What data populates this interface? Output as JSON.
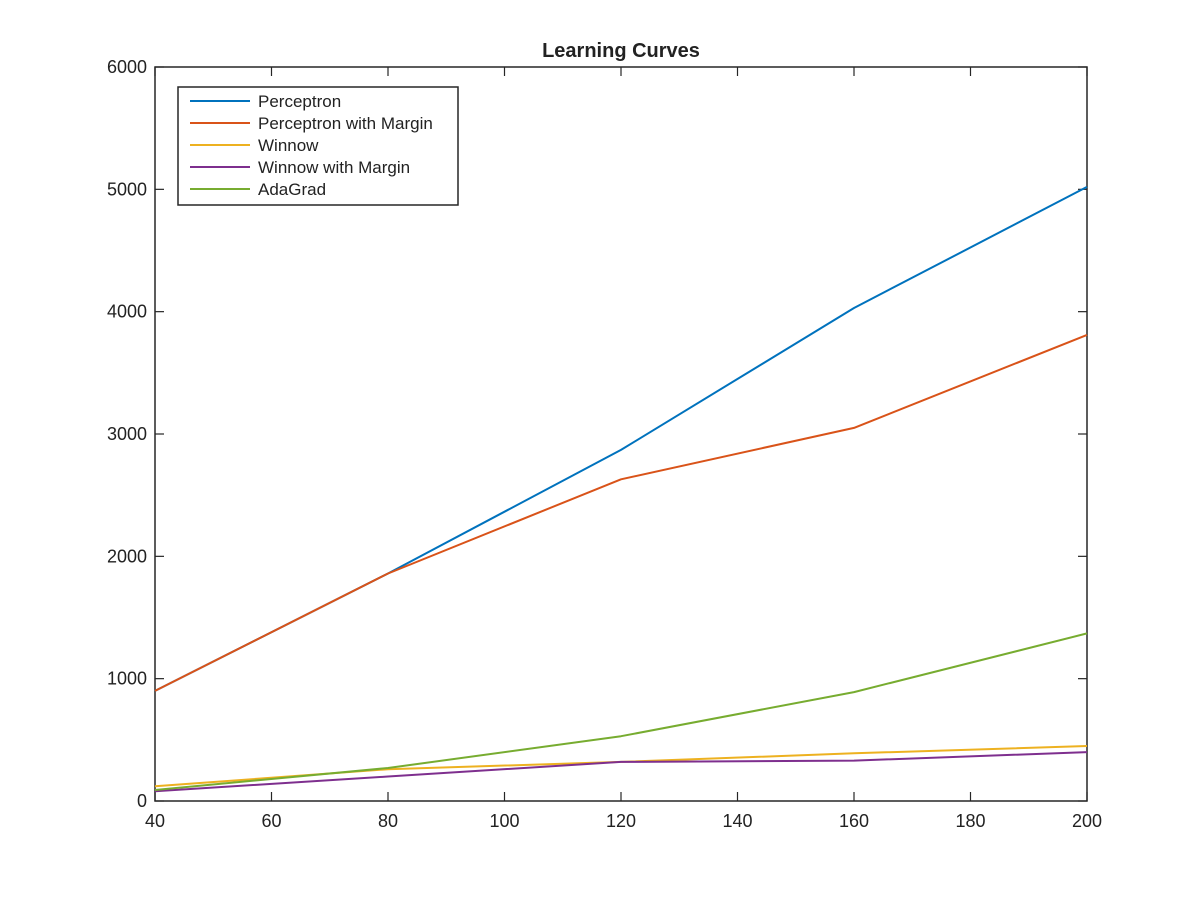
{
  "chart_data": {
    "type": "line",
    "title": "Learning Curves",
    "xlabel": "",
    "ylabel": "",
    "xlim": [
      40,
      200
    ],
    "ylim": [
      0,
      6000
    ],
    "xticks": [
      40,
      60,
      80,
      100,
      120,
      140,
      160,
      180,
      200
    ],
    "yticks": [
      0,
      1000,
      2000,
      3000,
      4000,
      5000,
      6000
    ],
    "grid": false,
    "legend_position": "top-left",
    "x": [
      40,
      80,
      120,
      160,
      200
    ],
    "series": [
      {
        "name": "Perceptron",
        "color": "#0072BD",
        "values": [
          900,
          1860,
          2870,
          4030,
          5020
        ]
      },
      {
        "name": "Perceptron with Margin",
        "color": "#D95319",
        "values": [
          900,
          1860,
          2630,
          3050,
          3810
        ]
      },
      {
        "name": "Winnow",
        "color": "#EDB120",
        "values": [
          120,
          260,
          320,
          390,
          450
        ]
      },
      {
        "name": "Winnow with Margin",
        "color": "#7E2F8E",
        "values": [
          80,
          200,
          320,
          330,
          400
        ]
      },
      {
        "name": "AdaGrad",
        "color": "#77AC30",
        "values": [
          90,
          270,
          530,
          890,
          1370
        ]
      }
    ]
  }
}
